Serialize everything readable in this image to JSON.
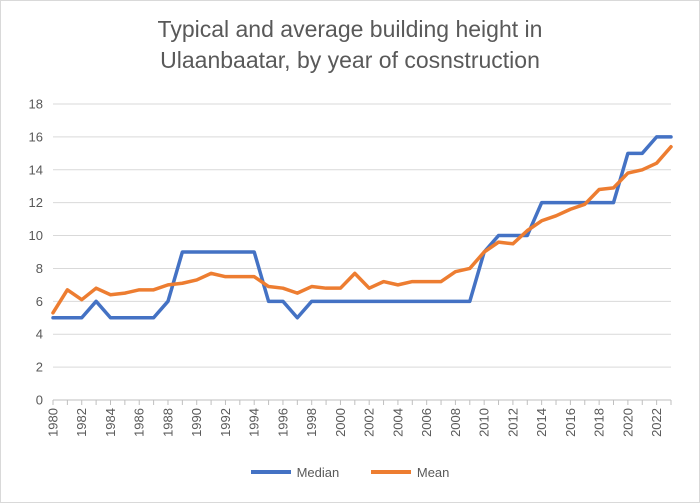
{
  "chart_data": {
    "type": "line",
    "title_lines": [
      "Typical and average building height in",
      "Ulaanbaatar, by year of cosnstruction"
    ],
    "xlabel": "",
    "ylabel": "",
    "ylim": [
      0,
      18
    ],
    "y_ticks": [
      0,
      2,
      4,
      6,
      8,
      10,
      12,
      14,
      16,
      18
    ],
    "x": [
      1980,
      1981,
      1982,
      1983,
      1984,
      1985,
      1986,
      1987,
      1988,
      1989,
      1990,
      1991,
      1992,
      1993,
      1994,
      1995,
      1996,
      1997,
      1998,
      1999,
      2000,
      2001,
      2002,
      2003,
      2004,
      2005,
      2006,
      2007,
      2008,
      2009,
      2010,
      2011,
      2012,
      2013,
      2014,
      2015,
      2016,
      2017,
      2018,
      2019,
      2020,
      2021,
      2022,
      2023
    ],
    "x_tick_labels": [
      "1980",
      "1982",
      "1984",
      "1986",
      "1988",
      "1990",
      "1992",
      "1994",
      "1996",
      "1998",
      "2000",
      "2002",
      "2004",
      "2006",
      "2008",
      "2010",
      "2012",
      "2014",
      "2016",
      "2018",
      "2020",
      "2022"
    ],
    "gridlines": "horizontal",
    "legend_position": "bottom",
    "series": [
      {
        "name": "Median",
        "color": "#4472C4",
        "values": [
          5,
          5,
          5,
          6,
          5,
          5,
          5,
          5,
          6,
          9,
          9,
          9,
          9,
          9,
          9,
          6,
          6,
          5,
          6,
          6,
          6,
          6,
          6,
          6,
          6,
          6,
          6,
          6,
          6,
          6,
          9,
          10,
          10,
          10,
          12,
          12,
          12,
          12,
          12,
          12,
          15,
          15,
          16,
          16
        ]
      },
      {
        "name": "Mean",
        "color": "#ED7D31",
        "values": [
          5.3,
          6.7,
          6.1,
          6.8,
          6.4,
          6.5,
          6.7,
          6.7,
          7.0,
          7.1,
          7.3,
          7.7,
          7.5,
          7.5,
          7.5,
          6.9,
          6.8,
          6.5,
          6.9,
          6.8,
          6.8,
          7.7,
          6.8,
          7.2,
          7.0,
          7.2,
          7.2,
          7.2,
          7.8,
          8.0,
          9.0,
          9.6,
          9.5,
          10.3,
          10.9,
          11.2,
          11.6,
          11.9,
          12.8,
          12.9,
          13.8,
          14.0,
          14.4,
          15.4
        ]
      }
    ]
  }
}
